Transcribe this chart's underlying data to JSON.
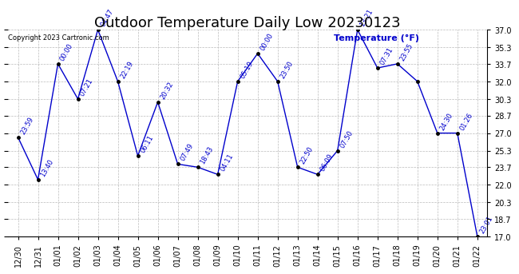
{
  "title": "Outdoor Temperature Daily Low 20230123",
  "background_color": "#ffffff",
  "plot_bg_color": "#ffffff",
  "grid_color": "#bbbbbb",
  "line_color": "#0000cc",
  "marker_color": "#000000",
  "text_color": "#0000cc",
  "copyright_text": "Copyright 2023 Cartronic.com",
  "dates": [
    "12/30",
    "12/31",
    "01/01",
    "01/02",
    "01/03",
    "01/04",
    "01/05",
    "01/06",
    "01/07",
    "01/08",
    "01/09",
    "01/10",
    "01/11",
    "01/12",
    "01/13",
    "01/14",
    "01/15",
    "01/16",
    "01/17",
    "01/18",
    "01/19",
    "01/20",
    "01/21",
    "01/22"
  ],
  "temps": [
    26.6,
    22.5,
    33.7,
    30.3,
    37.0,
    32.0,
    24.8,
    30.0,
    24.0,
    23.7,
    23.0,
    32.0,
    34.7,
    32.0,
    23.7,
    23.0,
    25.3,
    37.0,
    33.3,
    33.7,
    32.0,
    27.0,
    27.0,
    17.0
  ],
  "times": [
    "23:59",
    "13:40",
    "00:00",
    "07:21",
    "04:47",
    "22:19",
    "06:11",
    "20:32",
    "07:49",
    "18:43",
    "04:11",
    "05:19",
    "00:00",
    "23:50",
    "22:50",
    "06:09",
    "07:50",
    "13:21",
    "07:31",
    "23:55",
    "",
    "24:30",
    "01:26",
    "23:01"
  ],
  "ylim_min": 17.0,
  "ylim_max": 37.0,
  "yticks": [
    17.0,
    18.7,
    20.3,
    22.0,
    23.7,
    25.3,
    27.0,
    28.7,
    30.3,
    32.0,
    33.7,
    35.3,
    37.0
  ],
  "title_fontsize": 13,
  "tick_fontsize": 7,
  "annotation_fontsize": 6,
  "legend_text": "Temperature (°F)",
  "copyright_fontsize": 6
}
